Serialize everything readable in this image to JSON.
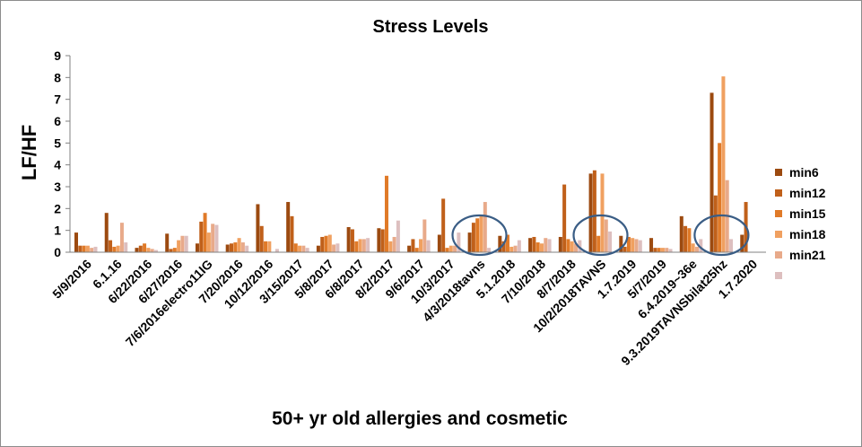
{
  "chart_data": {
    "type": "bar",
    "title": "Stress Levels",
    "xlabel": "50+ yr old allergies and cosmetic",
    "ylabel": "LF/HF",
    "ylim": [
      0,
      9
    ],
    "yticks": [
      "0",
      "1",
      "2",
      "3",
      "4",
      "5",
      "6",
      "7",
      "8",
      "9"
    ],
    "grid": false,
    "legend_position": "right",
    "categories": [
      "5/9/2016",
      "6.1.16",
      "6/22/2016",
      "6/27/2016",
      "7/6/2016electro11IG",
      "7/20/2016",
      "10/12/2016",
      "3/15/2017",
      "5/8/2017",
      "6/8/2017",
      "8/2/2017",
      "9/6/2017",
      "10/3/2017",
      "4/3/2018tavns",
      "5.1.2018",
      "7/10/2018",
      "8/7/2018",
      "10/2/2018TAVNS",
      "1.7.2019",
      "5/7/2019",
      "6.4.2019~36e",
      "9.3.2019TAVNSbilat25hz",
      "1.7.2020"
    ],
    "series": [
      {
        "name": "min6",
        "color": "#9c4a10",
        "values": [
          0.9,
          1.8,
          0.2,
          0.85,
          0.4,
          0.35,
          2.2,
          2.3,
          0.3,
          1.15,
          1.1,
          0.3,
          0.8,
          0.9,
          0.75,
          0.65,
          0.7,
          3.6,
          0.75,
          0.65,
          1.65,
          7.3,
          0.8
        ]
      },
      {
        "name": "min12",
        "color": "#c0601a",
        "values": [
          0.3,
          0.55,
          0.3,
          0.15,
          1.4,
          0.4,
          1.2,
          1.65,
          0.7,
          1.05,
          1.05,
          0.6,
          2.45,
          1.35,
          0.5,
          0.7,
          3.1,
          3.75,
          0.25,
          0.2,
          1.2,
          2.6,
          2.3
        ]
      },
      {
        "name": "min15",
        "color": "#e07a28",
        "values": [
          0.3,
          0.25,
          0.4,
          0.2,
          1.8,
          0.45,
          0.5,
          0.4,
          0.75,
          0.5,
          3.5,
          0.2,
          0.2,
          1.55,
          0.8,
          0.45,
          0.6,
          0.75,
          0.7,
          0.2,
          1.1,
          5.0,
          null
        ]
      },
      {
        "name": "min18",
        "color": "#f0a060",
        "values": [
          0.3,
          0.3,
          0.2,
          0.55,
          0.9,
          0.65,
          0.5,
          0.3,
          0.8,
          0.6,
          0.5,
          0.6,
          0.3,
          1.65,
          0.25,
          0.4,
          0.5,
          3.6,
          0.65,
          0.2,
          0.4,
          8.05,
          null
        ]
      },
      {
        "name": "min21",
        "color": "#e8aa8a",
        "values": [
          0.2,
          1.35,
          0.15,
          0.75,
          1.3,
          0.45,
          null,
          0.3,
          0.35,
          0.6,
          0.7,
          1.5,
          0.3,
          2.3,
          0.3,
          0.65,
          0.4,
          1.5,
          0.6,
          0.2,
          0.25,
          3.3,
          null
        ]
      },
      {
        "name": "",
        "color": "#ddbfbf",
        "values": [
          0.25,
          0.45,
          0.1,
          0.75,
          1.25,
          0.3,
          0.15,
          0.2,
          0.4,
          0.65,
          1.45,
          0.55,
          0.9,
          0.2,
          0.55,
          0.6,
          0.55,
          0.95,
          0.55,
          0.15,
          0.6,
          0.6,
          null
        ]
      }
    ],
    "annotations": [
      {
        "type": "circle",
        "category": "4/3/2018tavns"
      },
      {
        "type": "circle",
        "category": "10/2/2018TAVNS"
      },
      {
        "type": "circle",
        "category": "9.3.2019TAVNSbilat25hz"
      }
    ]
  }
}
